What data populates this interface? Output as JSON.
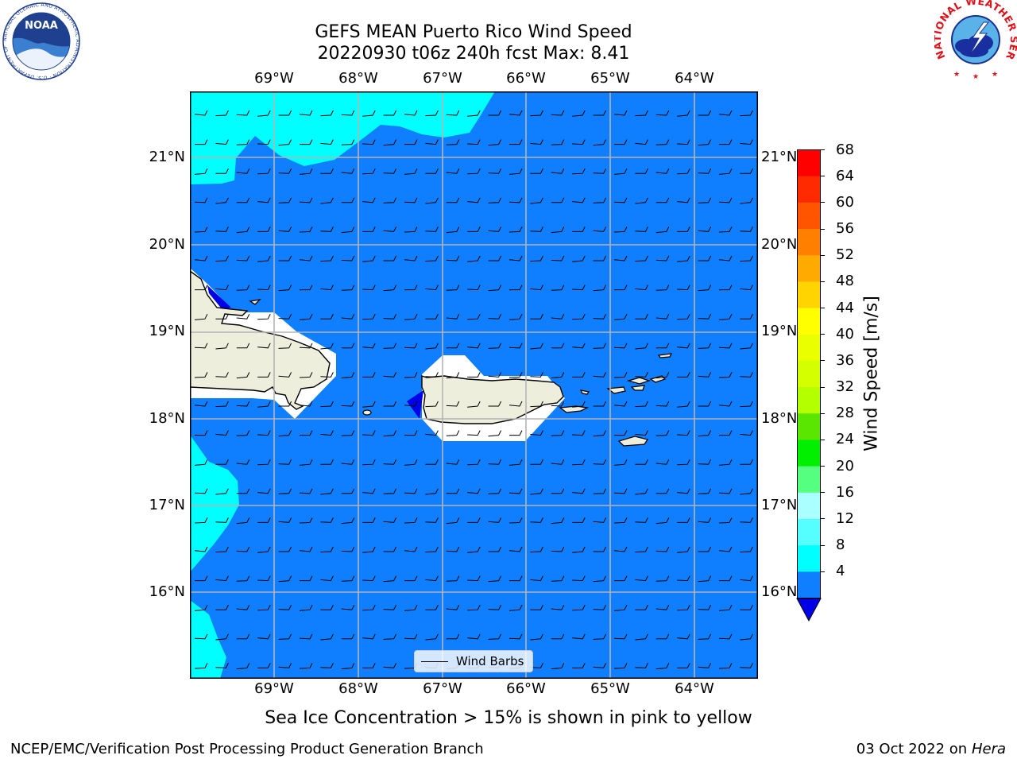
{
  "header": {
    "title_line1": "GEFS MEAN Puerto Rico Wind Speed",
    "title_line2": "20220930 t06z 240h fcst   Max: 8.41"
  },
  "map": {
    "lon_ticks": [
      "69°W",
      "68°W",
      "67°W",
      "66°W",
      "65°W",
      "64°W"
    ],
    "lat_ticks": [
      "21°N",
      "20°N",
      "19°N",
      "18°N",
      "17°N",
      "16°N"
    ],
    "legend_label": "Wind Barbs",
    "colors": {
      "ocean_main": "#0f7fff",
      "ocean_light": "#00ffff",
      "ocean_dark": "#0000e6",
      "land": "#eeeedc",
      "no_data": "#ffffff",
      "grid": "#b4b4b4"
    }
  },
  "colorbar": {
    "label": "Wind Speed [m/s]",
    "ticks": [
      "68",
      "64",
      "60",
      "56",
      "52",
      "48",
      "44",
      "40",
      "36",
      "32",
      "28",
      "24",
      "20",
      "16",
      "12",
      "8",
      "4"
    ],
    "colors_top_to_bottom": [
      "#ff0000",
      "#ff2a00",
      "#ff5500",
      "#ff8000",
      "#ffaa00",
      "#ffd400",
      "#ffff00",
      "#eaff00",
      "#d4ff00",
      "#b4ff00",
      "#5ae600",
      "#00f000",
      "#55ff7f",
      "#aaffff",
      "#55ffff",
      "#00ffff",
      "#0f7fff"
    ],
    "under_color": "#0000e6"
  },
  "caption": "Sea Ice Concentration > 15% is shown in pink to yellow",
  "footer": {
    "left": "NCEP/EMC/Verification Post Processing Product Generation Branch",
    "right_date": "03 Oct 2022 on",
    "right_machine": "Hera"
  },
  "logos": {
    "noaa_text": "NOAA",
    "noaa_ring": "NATIONAL OCEANIC AND ATMOSPHERIC ADMINISTRATION · U.S. DEPARTMENT OF COMMERCE",
    "nws_ring": "NATIONAL WEATHER SERVICE"
  }
}
